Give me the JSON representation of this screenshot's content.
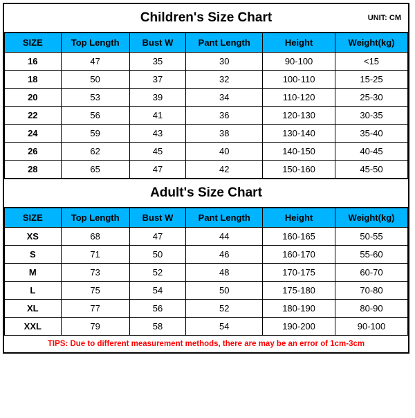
{
  "colors": {
    "header_bg": "#00b4ff",
    "border": "#000000",
    "tips": "#ff0000",
    "bg": "#ffffff"
  },
  "children": {
    "title": "Children's Size Chart",
    "unit": "UNIT: CM",
    "columns": [
      "SIZE",
      "Top Length",
      "Bust W",
      "Pant Length",
      "Height",
      "Weight(kg)"
    ],
    "rows": [
      [
        "16",
        "47",
        "35",
        "30",
        "90-100",
        "<15"
      ],
      [
        "18",
        "50",
        "37",
        "32",
        "100-110",
        "15-25"
      ],
      [
        "20",
        "53",
        "39",
        "34",
        "110-120",
        "25-30"
      ],
      [
        "22",
        "56",
        "41",
        "36",
        "120-130",
        "30-35"
      ],
      [
        "24",
        "59",
        "43",
        "38",
        "130-140",
        "35-40"
      ],
      [
        "26",
        "62",
        "45",
        "40",
        "140-150",
        "40-45"
      ],
      [
        "28",
        "65",
        "47",
        "42",
        "150-160",
        "45-50"
      ]
    ]
  },
  "adult": {
    "title": "Adult's Size Chart",
    "columns": [
      "SIZE",
      "Top Length",
      "Bust W",
      "Pant Length",
      "Height",
      "Weight(kg)"
    ],
    "rows": [
      [
        "XS",
        "68",
        "47",
        "44",
        "160-165",
        "50-55"
      ],
      [
        "S",
        "71",
        "50",
        "46",
        "160-170",
        "55-60"
      ],
      [
        "M",
        "73",
        "52",
        "48",
        "170-175",
        "60-70"
      ],
      [
        "L",
        "75",
        "54",
        "50",
        "175-180",
        "70-80"
      ],
      [
        "XL",
        "77",
        "56",
        "52",
        "180-190",
        "80-90"
      ],
      [
        "XXL",
        "79",
        "58",
        "54",
        "190-200",
        "90-100"
      ]
    ]
  },
  "tips": "TIPS: Due to different measurement methods, there are may be an error of 1cm-3cm"
}
